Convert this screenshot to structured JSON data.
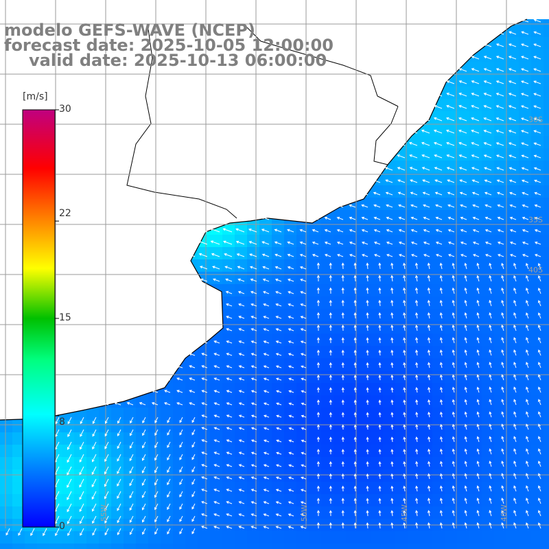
{
  "title": {
    "model": "modelo GEFS-WAVE (NCEP)",
    "forecast": "forecast date: 2025-10-05 12:00:00",
    "valid": "valid date: 2025-10-13 06:00:00"
  },
  "colorbar": {
    "unit": "[m/s]",
    "ticks": [
      "30",
      "22",
      "15",
      "8",
      "0"
    ],
    "tick_values": [
      30,
      22,
      15,
      8,
      0
    ],
    "min": 0,
    "max": 30,
    "colors": [
      "#0000ff",
      "#0080ff",
      "#00ffff",
      "#00ff80",
      "#00c000",
      "#ffff00",
      "#ff8000",
      "#ff0000",
      "#c00080"
    ]
  },
  "map": {
    "land_color": "#ffffff",
    "coast_color": "#000000",
    "grid_color": "#9a9a9a",
    "lon_labels": [
      "55W",
      "50W",
      "45W",
      "40W"
    ],
    "lat_labels": [
      "30S",
      "35S",
      "40S"
    ]
  }
}
